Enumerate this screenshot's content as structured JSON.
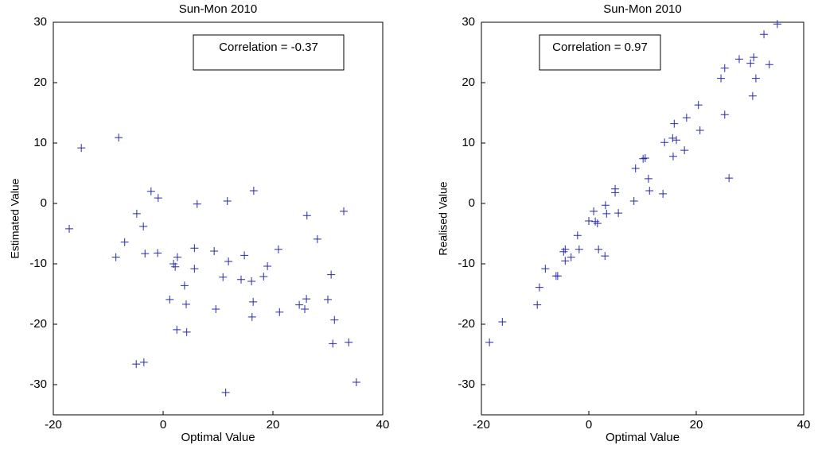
{
  "chart_data": [
    {
      "type": "scatter",
      "title": "Sun-Mon 2010",
      "x_label": "Optimal Value",
      "y_label": "Estimated Value",
      "annotation": "Correlation = -0.37",
      "color": "#2a2aa8",
      "xlim": [
        -20,
        40
      ],
      "ylim": [
        -35,
        30
      ],
      "xticks": [
        -20,
        0,
        20,
        40
      ],
      "yticks": [
        -30,
        -20,
        -10,
        0,
        10,
        20,
        30
      ],
      "x": [
        -17.1,
        -14.9,
        -8.1,
        -8.6,
        -7.0,
        -4.8,
        -3.6,
        -3.3,
        -4.9,
        -3.5,
        -2.2,
        -0.9,
        -1.0,
        1.2,
        1.9,
        2.2,
        2.6,
        2.5,
        3.9,
        4.2,
        4.3,
        5.7,
        5.7,
        6.2,
        9.3,
        9.6,
        10.9,
        11.7,
        11.9,
        11.4,
        14.2,
        14.8,
        16.1,
        16.5,
        16.4,
        16.2,
        18.3,
        19.0,
        21.0,
        21.2,
        24.8,
        25.8,
        26.1,
        26.2,
        28.1,
        30.0,
        30.6,
        31.2,
        30.9,
        32.9,
        33.8,
        35.2
      ],
      "values": [
        -4.2,
        9.2,
        10.9,
        -8.9,
        -6.4,
        -1.7,
        -3.8,
        -8.3,
        -26.6,
        -26.3,
        2.0,
        0.9,
        -8.2,
        -15.9,
        -10.0,
        -10.5,
        -8.9,
        -20.9,
        -13.6,
        -16.7,
        -21.3,
        -7.4,
        -10.8,
        -0.1,
        -7.9,
        -17.5,
        -12.2,
        0.4,
        -9.6,
        -31.3,
        -12.6,
        -8.6,
        -12.9,
        2.1,
        -16.3,
        -18.8,
        -12.1,
        -10.4,
        -7.6,
        -18.0,
        -16.8,
        -17.5,
        -15.8,
        -2.0,
        -5.9,
        -15.9,
        -11.8,
        -19.3,
        -23.2,
        -1.3,
        -23.0,
        -29.6
      ]
    },
    {
      "type": "scatter",
      "title": "Sun-Mon 2010",
      "x_label": "Optimal Value",
      "y_label": "Realised Value",
      "annotation": "Correlation = 0.97",
      "color": "#2a2aa8",
      "xlim": [
        -20,
        40
      ],
      "ylim": [
        -35,
        30
      ],
      "xticks": [
        -20,
        0,
        20,
        40
      ],
      "yticks": [
        -30,
        -20,
        -10,
        0,
        10,
        20,
        30
      ],
      "x": [
        -18.5,
        -16.1,
        -9.6,
        -9.2,
        -8.1,
        -6.1,
        -5.8,
        -4.7,
        -4.4,
        -4.4,
        -3.3,
        -2.1,
        -1.8,
        0.0,
        0.9,
        1.2,
        1.6,
        1.8,
        3.1,
        3.3,
        3.0,
        4.9,
        4.9,
        5.5,
        8.4,
        8.7,
        10.1,
        10.5,
        11.1,
        11.3,
        13.8,
        14.1,
        15.6,
        15.9,
        16.3,
        15.7,
        17.8,
        18.2,
        20.4,
        20.7,
        24.6,
        25.3,
        25.3,
        26.1,
        28.0,
        30.1,
        30.7,
        30.5,
        31.1,
        32.6,
        33.6,
        35.1
      ],
      "values": [
        -23.0,
        -19.6,
        -16.8,
        -13.9,
        -10.8,
        -12.0,
        -12.0,
        -8.0,
        -7.6,
        -9.5,
        -8.9,
        -5.3,
        -7.6,
        -2.9,
        -1.3,
        -3.0,
        -3.3,
        -7.6,
        -0.3,
        -1.7,
        -8.7,
        2.4,
        1.8,
        -1.6,
        0.4,
        5.8,
        7.4,
        7.5,
        4.1,
        2.1,
        1.6,
        10.1,
        10.8,
        13.2,
        10.5,
        7.8,
        8.8,
        14.2,
        16.3,
        12.1,
        20.7,
        22.4,
        14.7,
        4.2,
        23.9,
        23.2,
        24.2,
        17.8,
        20.7,
        28.0,
        23.0,
        29.7
      ]
    }
  ]
}
